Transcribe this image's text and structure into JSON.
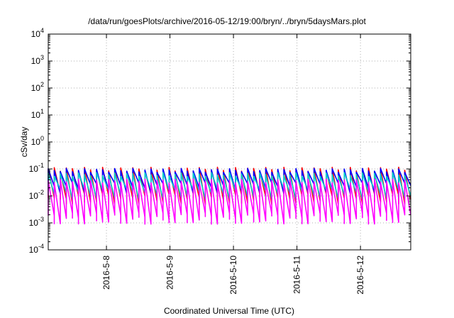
{
  "chart_data": {
    "type": "line",
    "title": "/data/run/goesPlots/archive/2016-05-12/19:00/bryn/../bryn/5daysMars.plot",
    "xlabel": "Coordinated Universal Time (UTC)",
    "ylabel": "cSv/day",
    "yscale": "log",
    "ylim": [
      0.0001,
      10000
    ],
    "xlim": [
      "2016-05-07 02:00",
      "2016-05-12 19:00"
    ],
    "grid": true,
    "y_ticks": [
      {
        "base": "10",
        "exp": "-4"
      },
      {
        "base": "10",
        "exp": "-3"
      },
      {
        "base": "10",
        "exp": "-2"
      },
      {
        "base": "10",
        "exp": "-1"
      },
      {
        "base": "10",
        "exp": "0"
      },
      {
        "base": "10",
        "exp": "1"
      },
      {
        "base": "10",
        "exp": "2"
      },
      {
        "base": "10",
        "exp": "3"
      },
      {
        "base": "10",
        "exp": "4"
      }
    ],
    "x_ticks": [
      "2016-5-8",
      "2016-5-9",
      "2016-5-10",
      "2016-5-11",
      "2016-5-12"
    ],
    "cycles": 60,
    "series": [
      {
        "color": "#ff0000",
        "peak": 0.11,
        "trough": 0.008
      },
      {
        "color": "#0000ff",
        "peak": 0.1,
        "trough": 0.02
      },
      {
        "color": "#00cccc",
        "peak": 0.07,
        "trough": 0.012
      },
      {
        "color": "#ff00ff",
        "peak": 0.04,
        "trough": 0.0015
      }
    ]
  }
}
